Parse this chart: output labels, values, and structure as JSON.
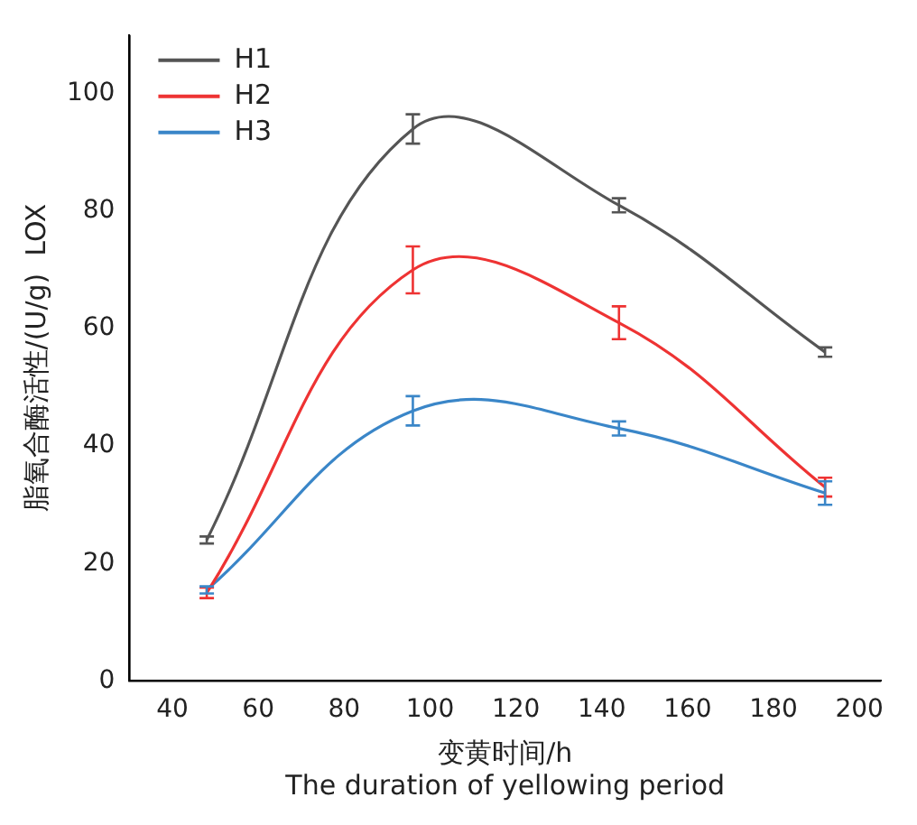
{
  "chart_data": {
    "type": "line",
    "xlabel": "变黄时间/h\nThe duration of yellowing period",
    "ylabel": "脂氧合酶活性/(U/g)  LOX",
    "x": [
      48,
      96,
      144,
      192
    ],
    "series": [
      {
        "name": "H1",
        "color": "#555555",
        "values": [
          24,
          94,
          81,
          56
        ],
        "errors": [
          0.6,
          2.5,
          1.2,
          0.8
        ]
      },
      {
        "name": "H2",
        "color": "#ee3333",
        "values": [
          15,
          70,
          61,
          33
        ],
        "errors": [
          0.9,
          4,
          2.8,
          1.6
        ]
      },
      {
        "name": "H3",
        "color": "#3a86c8",
        "values": [
          15.5,
          46,
          43,
          32
        ],
        "errors": [
          0.6,
          2.5,
          1.2,
          2
        ]
      }
    ],
    "xlim": [
      30,
      205
    ],
    "xticks": [
      40,
      60,
      80,
      100,
      120,
      140,
      160,
      180,
      200
    ],
    "ylim": [
      0,
      110
    ],
    "yticks": [
      0,
      20,
      40,
      60,
      80,
      100
    ],
    "grid": false,
    "legend": "top left",
    "line_style": "solid"
  }
}
